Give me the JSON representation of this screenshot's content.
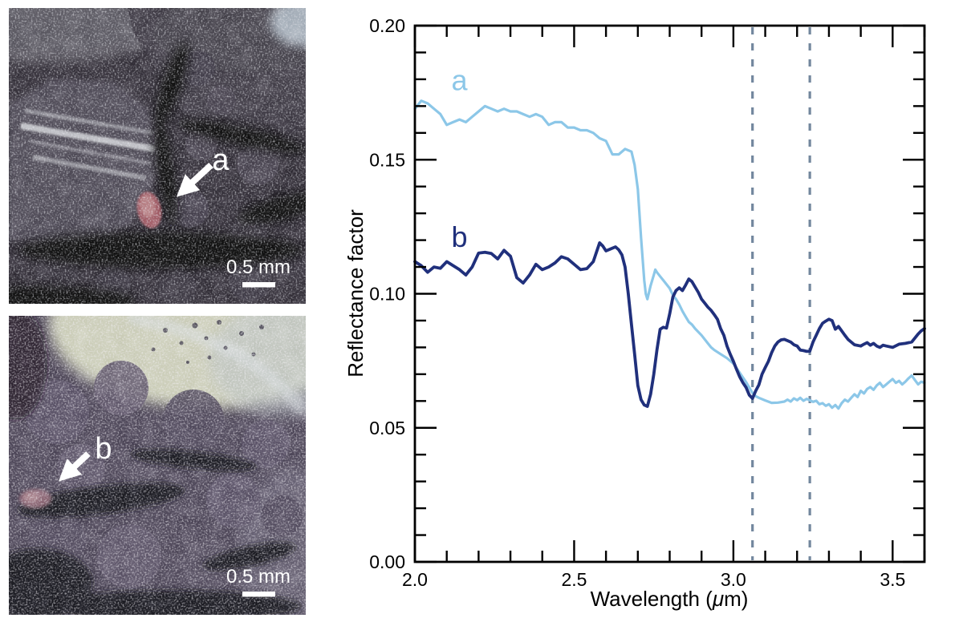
{
  "panels": {
    "top": {
      "label": "a",
      "scale_bar": "0.5 mm"
    },
    "bottom": {
      "label": "b",
      "scale_bar": "0.5 mm"
    }
  },
  "chart_data": {
    "type": "line",
    "title": "",
    "xlabel": "Wavelength (μm)",
    "xlabel_parts": {
      "pre": "Wavelength (",
      "mu": "μ",
      "post": "m)"
    },
    "ylabel": "Reflectance factor",
    "xlim": [
      2.0,
      3.6
    ],
    "ylim": [
      0.0,
      0.2
    ],
    "grid": false,
    "x_major_ticks": [
      2.0,
      2.5,
      3.0,
      3.5
    ],
    "x_tick_labels": [
      "2.0",
      "2.5",
      "3.0",
      "3.5"
    ],
    "x_minor_interval": 0.1,
    "y_major_ticks": [
      0.0,
      0.05,
      0.1,
      0.15,
      0.2
    ],
    "y_tick_labels": [
      "0.00",
      "0.05",
      "0.10",
      "0.15",
      "0.20"
    ],
    "y_minor_interval": 0.01,
    "vlines": {
      "x": [
        3.06,
        3.24
      ],
      "style": "dashed",
      "color": "#73879e"
    },
    "series": [
      {
        "name": "a",
        "color": "#8cc7e8",
        "label_pos": [
          2.14,
          0.176
        ],
        "points": [
          [
            2.0,
            0.169
          ],
          [
            2.02,
            0.172
          ],
          [
            2.04,
            0.171
          ],
          [
            2.06,
            0.169
          ],
          [
            2.08,
            0.167
          ],
          [
            2.1,
            0.163
          ],
          [
            2.12,
            0.164
          ],
          [
            2.14,
            0.165
          ],
          [
            2.16,
            0.164
          ],
          [
            2.18,
            0.166
          ],
          [
            2.2,
            0.168
          ],
          [
            2.22,
            0.17
          ],
          [
            2.24,
            0.169
          ],
          [
            2.26,
            0.168
          ],
          [
            2.28,
            0.169
          ],
          [
            2.3,
            0.168
          ],
          [
            2.32,
            0.168
          ],
          [
            2.34,
            0.167
          ],
          [
            2.36,
            0.166
          ],
          [
            2.38,
            0.167
          ],
          [
            2.4,
            0.166
          ],
          [
            2.42,
            0.163
          ],
          [
            2.44,
            0.164
          ],
          [
            2.46,
            0.164
          ],
          [
            2.48,
            0.162
          ],
          [
            2.5,
            0.162
          ],
          [
            2.52,
            0.161
          ],
          [
            2.54,
            0.161
          ],
          [
            2.56,
            0.16
          ],
          [
            2.58,
            0.158
          ],
          [
            2.6,
            0.157
          ],
          [
            2.62,
            0.152
          ],
          [
            2.64,
            0.152
          ],
          [
            2.66,
            0.154
          ],
          [
            2.68,
            0.153
          ],
          [
            2.69,
            0.148
          ],
          [
            2.7,
            0.139
          ],
          [
            2.705,
            0.13
          ],
          [
            2.71,
            0.121
          ],
          [
            2.715,
            0.113
          ],
          [
            2.72,
            0.105
          ],
          [
            2.725,
            0.1
          ],
          [
            2.73,
            0.098
          ],
          [
            2.74,
            0.103
          ],
          [
            2.75,
            0.107
          ],
          [
            2.755,
            0.109
          ],
          [
            2.76,
            0.108
          ],
          [
            2.77,
            0.1065
          ],
          [
            2.78,
            0.105
          ],
          [
            2.8,
            0.102
          ],
          [
            2.81,
            0.0995
          ],
          [
            2.82,
            0.098
          ],
          [
            2.83,
            0.096
          ],
          [
            2.84,
            0.0935
          ],
          [
            2.85,
            0.0915
          ],
          [
            2.86,
            0.0895
          ],
          [
            2.87,
            0.0885
          ],
          [
            2.88,
            0.087
          ],
          [
            2.9,
            0.0845
          ],
          [
            2.92,
            0.0815
          ],
          [
            2.93,
            0.08
          ],
          [
            2.94,
            0.079
          ],
          [
            2.96,
            0.0775
          ],
          [
            2.98,
            0.076
          ],
          [
            3.0,
            0.074
          ],
          [
            3.02,
            0.0705
          ],
          [
            3.04,
            0.067
          ],
          [
            3.06,
            0.063
          ],
          [
            3.07,
            0.0618
          ],
          [
            3.08,
            0.0612
          ],
          [
            3.1,
            0.0602
          ],
          [
            3.12,
            0.0593
          ],
          [
            3.14,
            0.0594
          ],
          [
            3.16,
            0.0598
          ],
          [
            3.17,
            0.0605
          ],
          [
            3.18,
            0.0598
          ],
          [
            3.19,
            0.061
          ],
          [
            3.2,
            0.0603
          ],
          [
            3.21,
            0.0612
          ],
          [
            3.22,
            0.0601
          ],
          [
            3.23,
            0.0608
          ],
          [
            3.24,
            0.0603
          ],
          [
            3.25,
            0.0597
          ],
          [
            3.26,
            0.0601
          ],
          [
            3.27,
            0.0588
          ],
          [
            3.28,
            0.0592
          ],
          [
            3.29,
            0.0582
          ],
          [
            3.3,
            0.0588
          ],
          [
            3.31,
            0.0575
          ],
          [
            3.32,
            0.0585
          ],
          [
            3.33,
            0.0572
          ],
          [
            3.34,
            0.0592
          ],
          [
            3.35,
            0.0605
          ],
          [
            3.36,
            0.0598
          ],
          [
            3.37,
            0.0612
          ],
          [
            3.38,
            0.0625
          ],
          [
            3.39,
            0.0615
          ],
          [
            3.4,
            0.0638
          ],
          [
            3.41,
            0.0628
          ],
          [
            3.42,
            0.0645
          ],
          [
            3.43,
            0.0652
          ],
          [
            3.44,
            0.0642
          ],
          [
            3.45,
            0.0658
          ],
          [
            3.46,
            0.0668
          ],
          [
            3.47,
            0.0652
          ],
          [
            3.48,
            0.0662
          ],
          [
            3.49,
            0.0672
          ],
          [
            3.5,
            0.0682
          ],
          [
            3.51,
            0.0668
          ],
          [
            3.52,
            0.0675
          ],
          [
            3.53,
            0.0662
          ],
          [
            3.54,
            0.0672
          ],
          [
            3.55,
            0.0685
          ],
          [
            3.56,
            0.0695
          ],
          [
            3.57,
            0.0678
          ],
          [
            3.58,
            0.0662
          ],
          [
            3.59,
            0.0672
          ],
          [
            3.6,
            0.0668
          ]
        ]
      },
      {
        "name": "b",
        "color": "#20307c",
        "label_pos": [
          2.14,
          0.1175
        ],
        "points": [
          [
            2.0,
            0.112
          ],
          [
            2.02,
            0.1105
          ],
          [
            2.04,
            0.108
          ],
          [
            2.06,
            0.11
          ],
          [
            2.08,
            0.1095
          ],
          [
            2.1,
            0.112
          ],
          [
            2.12,
            0.1105
          ],
          [
            2.14,
            0.109
          ],
          [
            2.16,
            0.107
          ],
          [
            2.18,
            0.11
          ],
          [
            2.2,
            0.1152
          ],
          [
            2.22,
            0.1155
          ],
          [
            2.24,
            0.115
          ],
          [
            2.26,
            0.113
          ],
          [
            2.28,
            0.1162
          ],
          [
            2.3,
            0.114
          ],
          [
            2.32,
            0.106
          ],
          [
            2.34,
            0.104
          ],
          [
            2.36,
            0.107
          ],
          [
            2.38,
            0.111
          ],
          [
            2.4,
            0.109
          ],
          [
            2.42,
            0.11
          ],
          [
            2.44,
            0.1115
          ],
          [
            2.46,
            0.1138
          ],
          [
            2.48,
            0.113
          ],
          [
            2.5,
            0.111
          ],
          [
            2.52,
            0.109
          ],
          [
            2.54,
            0.1094
          ],
          [
            2.56,
            0.112
          ],
          [
            2.58,
            0.119
          ],
          [
            2.59,
            0.1178
          ],
          [
            2.6,
            0.116
          ],
          [
            2.62,
            0.117
          ],
          [
            2.63,
            0.1175
          ],
          [
            2.64,
            0.1164
          ],
          [
            2.65,
            0.1145
          ],
          [
            2.66,
            0.11
          ],
          [
            2.67,
            0.1
          ],
          [
            2.68,
            0.0885
          ],
          [
            2.69,
            0.0775
          ],
          [
            2.7,
            0.0658
          ],
          [
            2.71,
            0.0605
          ],
          [
            2.72,
            0.0585
          ],
          [
            2.73,
            0.058
          ],
          [
            2.74,
            0.0625
          ],
          [
            2.75,
            0.07
          ],
          [
            2.76,
            0.079
          ],
          [
            2.77,
            0.0868
          ],
          [
            2.78,
            0.0875
          ],
          [
            2.79,
            0.0872
          ],
          [
            2.8,
            0.0925
          ],
          [
            2.81,
            0.0988
          ],
          [
            2.82,
            0.1012
          ],
          [
            2.83,
            0.1022
          ],
          [
            2.84,
            0.1012
          ],
          [
            2.85,
            0.1032
          ],
          [
            2.86,
            0.1055
          ],
          [
            2.87,
            0.1045
          ],
          [
            2.88,
            0.1025
          ],
          [
            2.89,
            0.1005
          ],
          [
            2.9,
            0.098
          ],
          [
            2.91,
            0.0965
          ],
          [
            2.92,
            0.095
          ],
          [
            2.93,
            0.0938
          ],
          [
            2.94,
            0.0922
          ],
          [
            2.95,
            0.0905
          ],
          [
            2.96,
            0.087
          ],
          [
            2.97,
            0.0845
          ],
          [
            2.98,
            0.0805
          ],
          [
            2.99,
            0.0775
          ],
          [
            3.0,
            0.0748
          ],
          [
            3.01,
            0.0718
          ],
          [
            3.02,
            0.069
          ],
          [
            3.03,
            0.0668
          ],
          [
            3.04,
            0.065
          ],
          [
            3.05,
            0.0622
          ],
          [
            3.06,
            0.061
          ],
          [
            3.07,
            0.0638
          ],
          [
            3.08,
            0.066
          ],
          [
            3.09,
            0.07
          ],
          [
            3.1,
            0.0725
          ],
          [
            3.11,
            0.0748
          ],
          [
            3.12,
            0.078
          ],
          [
            3.13,
            0.0805
          ],
          [
            3.14,
            0.082
          ],
          [
            3.15,
            0.0828
          ],
          [
            3.16,
            0.083
          ],
          [
            3.17,
            0.0825
          ],
          [
            3.18,
            0.082
          ],
          [
            3.19,
            0.081
          ],
          [
            3.2,
            0.0805
          ],
          [
            3.21,
            0.079
          ],
          [
            3.22,
            0.0788
          ],
          [
            3.23,
            0.0785
          ],
          [
            3.24,
            0.0786
          ],
          [
            3.25,
            0.082
          ],
          [
            3.26,
            0.0845
          ],
          [
            3.27,
            0.087
          ],
          [
            3.28,
            0.089
          ],
          [
            3.29,
            0.0898
          ],
          [
            3.3,
            0.0905
          ],
          [
            3.31,
            0.09
          ],
          [
            3.32,
            0.0868
          ],
          [
            3.33,
            0.0878
          ],
          [
            3.34,
            0.0862
          ],
          [
            3.35,
            0.0845
          ],
          [
            3.36,
            0.083
          ],
          [
            3.38,
            0.081
          ],
          [
            3.4,
            0.0805
          ],
          [
            3.41,
            0.0812
          ],
          [
            3.42,
            0.0818
          ],
          [
            3.43,
            0.0808
          ],
          [
            3.44,
            0.0815
          ],
          [
            3.45,
            0.0805
          ],
          [
            3.46,
            0.08
          ],
          [
            3.47,
            0.0808
          ],
          [
            3.48,
            0.0805
          ],
          [
            3.5,
            0.08
          ],
          [
            3.52,
            0.0812
          ],
          [
            3.54,
            0.0815
          ],
          [
            3.56,
            0.082
          ],
          [
            3.58,
            0.085
          ],
          [
            3.59,
            0.0862
          ],
          [
            3.6,
            0.087
          ]
        ]
      }
    ]
  }
}
